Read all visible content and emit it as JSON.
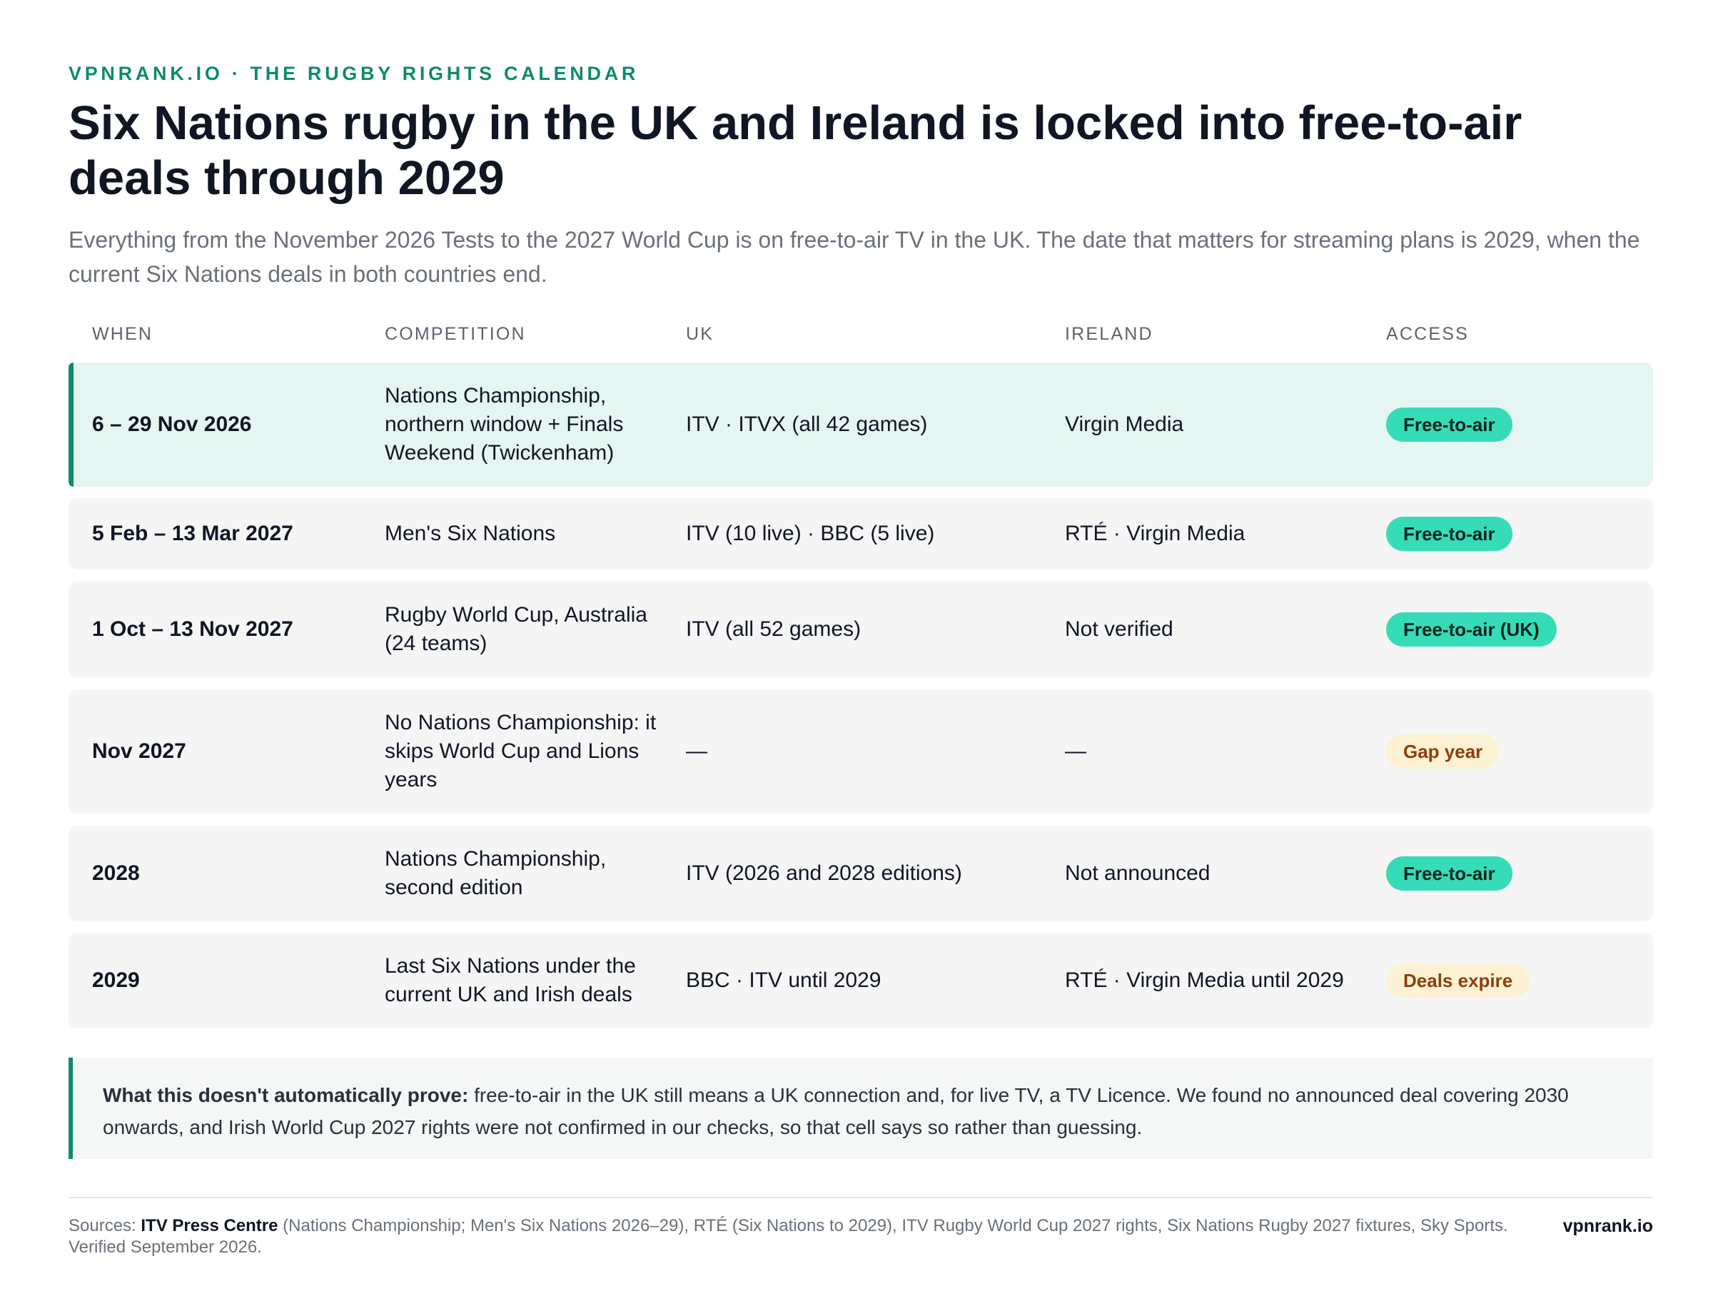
{
  "header": {
    "kicker": "VPNRANK.IO · THE RUGBY RIGHTS CALENDAR",
    "title": "Six Nations rugby in the UK and Ireland is locked into free-to-air deals through 2029",
    "subtitle": "Everything from the November 2026 Tests to the 2027 World Cup is on free-to-air TV in the UK. The date that matters for streaming plans is 2029, when the current Six Nations deals in both countries end."
  },
  "table": {
    "columns": [
      "WHEN",
      "COMPETITION",
      "UK",
      "IRELAND",
      "ACCESS"
    ],
    "rows": [
      {
        "when": "6 – 29 Nov 2026",
        "competition": "Nations Championship, northern window + Finals Weekend (Twickenham)",
        "uk": "ITV · ITVX (all 42 games)",
        "ireland": "Virgin Media",
        "access": "Free-to-air",
        "access_tone": "green",
        "highlight": true
      },
      {
        "when": "5 Feb – 13 Mar 2027",
        "competition": "Men's Six Nations",
        "uk": "ITV (10 live) · BBC (5 live)",
        "ireland": "RTÉ · Virgin Media",
        "access": "Free-to-air",
        "access_tone": "green",
        "highlight": false
      },
      {
        "when": "1 Oct – 13 Nov 2027",
        "competition": "Rugby World Cup, Australia (24 teams)",
        "uk": "ITV (all 52 games)",
        "ireland": "Not verified",
        "access": "Free-to-air (UK)",
        "access_tone": "green",
        "highlight": false
      },
      {
        "when": "Nov 2027",
        "competition": "No Nations Championship: it skips World Cup and Lions years",
        "uk": "—",
        "ireland": "—",
        "access": "Gap year",
        "access_tone": "amber",
        "highlight": false
      },
      {
        "when": "2028",
        "competition": "Nations Championship, second edition",
        "uk": "ITV (2026 and 2028 editions)",
        "ireland": "Not announced",
        "access": "Free-to-air",
        "access_tone": "green",
        "highlight": false
      },
      {
        "when": "2029",
        "competition": "Last Six Nations under the current UK and Irish deals",
        "uk": "BBC · ITV until 2029",
        "ireland": "RTÉ · Virgin Media until 2029",
        "access": "Deals expire",
        "access_tone": "amber",
        "highlight": false
      }
    ]
  },
  "note": {
    "lead": "What this doesn't automatically prove:",
    "text": " free-to-air in the UK still means a UK connection and, for live TV, a TV Licence. We found no announced deal covering 2030 onwards, and Irish World Cup 2027 rights were not confirmed in our checks, so that cell says so rather than guessing."
  },
  "footer": {
    "sources_label": "Sources: ",
    "sources_primary": "ITV Press Centre",
    "sources_rest": " (Nations Championship; Men's Six Nations 2026–29), RTÉ (Six Nations to 2029), ITV Rugby World Cup 2027 rights, Six Nations Rugby 2027 fixtures, Sky Sports. Verified September 2026.",
    "brand": "vpnrank.io"
  },
  "colors": {
    "accent": "#0f8a6e",
    "badge_green": "#35dcb7",
    "badge_amber": "#fdf1d4",
    "highlight_row": "#e5f5f1",
    "row": "#f5f5f6"
  }
}
